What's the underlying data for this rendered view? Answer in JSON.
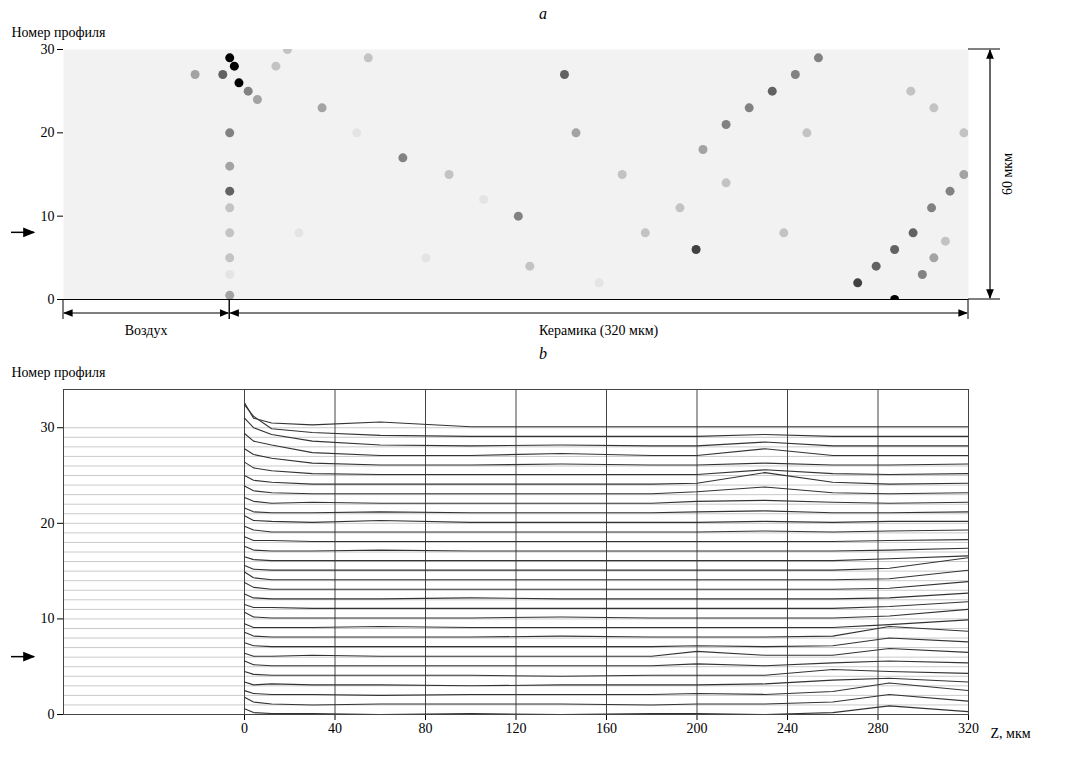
{
  "chart_data": [
    {
      "type": "heatmap",
      "title": "a",
      "y_label": "Номер профиля",
      "xlim": [
        -72,
        320
      ],
      "ylim": [
        0,
        30
      ],
      "yticks": [
        0,
        10,
        20,
        30
      ],
      "tick_labels": "y",
      "marked_profile": 8,
      "regions": [
        {
          "label": "Воздух",
          "from": -72,
          "to": 0
        },
        {
          "label": "Керамика (320 мкм)",
          "from": 0,
          "to": 320
        }
      ],
      "scale_bar": {
        "label": "60 мкм",
        "from": 0,
        "to": 30
      },
      "spots": [
        [
          0,
          29,
          1
        ],
        [
          2,
          28,
          1
        ],
        [
          4,
          26,
          1
        ],
        [
          -3,
          27,
          0.7
        ],
        [
          8,
          25,
          0.6
        ],
        [
          12,
          24,
          0.5
        ],
        [
          0,
          20,
          0.6
        ],
        [
          0,
          16,
          0.5
        ],
        [
          0,
          13,
          0.7
        ],
        [
          0,
          11,
          0.4
        ],
        [
          0,
          8,
          0.4
        ],
        [
          0,
          5,
          0.4
        ],
        [
          0,
          3,
          0.3
        ],
        [
          0,
          0.5,
          0.5
        ],
        [
          -15,
          27,
          0.5
        ],
        [
          20,
          28,
          0.4
        ],
        [
          25,
          30,
          0.4
        ],
        [
          60,
          29,
          0.4
        ],
        [
          40,
          23,
          0.5
        ],
        [
          55,
          20,
          0.3
        ],
        [
          75,
          17,
          0.6
        ],
        [
          95,
          15,
          0.4
        ],
        [
          110,
          12,
          0.3
        ],
        [
          125,
          10,
          0.6
        ],
        [
          145,
          27,
          0.7
        ],
        [
          150,
          20,
          0.5
        ],
        [
          130,
          4,
          0.4
        ],
        [
          170,
          15,
          0.4
        ],
        [
          180,
          8,
          0.4
        ],
        [
          195,
          11,
          0.4
        ],
        [
          202,
          6,
          0.8
        ],
        [
          215,
          14,
          0.4
        ],
        [
          30,
          8,
          0.3
        ],
        [
          85,
          5,
          0.3
        ],
        [
          160,
          2,
          0.3
        ],
        [
          240,
          8,
          0.4
        ],
        [
          250,
          20,
          0.4
        ],
        [
          205,
          18,
          0.5
        ],
        [
          215,
          21,
          0.6
        ],
        [
          225,
          23,
          0.6
        ],
        [
          235,
          25,
          0.7
        ],
        [
          245,
          27,
          0.6
        ],
        [
          255,
          29,
          0.6
        ],
        [
          272,
          2,
          0.8
        ],
        [
          280,
          4,
          0.7
        ],
        [
          288,
          6,
          0.7
        ],
        [
          296,
          8,
          0.7
        ],
        [
          304,
          11,
          0.6
        ],
        [
          312,
          13,
          0.6
        ],
        [
          318,
          15,
          0.5
        ],
        [
          288,
          0,
          1
        ],
        [
          300,
          3,
          0.6
        ],
        [
          305,
          5,
          0.5
        ],
        [
          310,
          7,
          0.4
        ],
        [
          318,
          20,
          0.4
        ],
        [
          305,
          23,
          0.4
        ],
        [
          295,
          25,
          0.4
        ]
      ]
    },
    {
      "type": "line",
      "title": "b",
      "y_label": "Номер профиля",
      "x_label": "Z, мкм",
      "xlim": [
        -80,
        320
      ],
      "xticks": [
        0,
        40,
        80,
        120,
        160,
        200,
        240,
        280,
        320
      ],
      "ylim": [
        0,
        34
      ],
      "yticks": [
        0,
        10,
        20,
        30
      ],
      "grid": true,
      "color": "#333333",
      "marked_profile": 6,
      "x": [
        0,
        4,
        12,
        30,
        60,
        100,
        140,
        180,
        200,
        230,
        260,
        285,
        320
      ],
      "series": [
        {
          "profile": 0,
          "values": [
            0.6,
            0.2,
            0.1,
            0.1,
            0,
            0.1,
            0,
            0.1,
            0.1,
            0,
            0.2,
            0.9,
            0.3
          ]
        },
        {
          "profile": 1,
          "values": [
            0.8,
            0.3,
            0.1,
            0,
            0.1,
            0.1,
            0.1,
            0,
            0.1,
            0.1,
            0.3,
            1.1,
            0.4
          ]
        },
        {
          "profile": 2,
          "values": [
            0.5,
            0.2,
            0.1,
            0.1,
            0,
            0.1,
            0.1,
            0.1,
            0.2,
            0.1,
            0.4,
            1.3,
            0.5
          ]
        },
        {
          "profile": 3,
          "values": [
            0.4,
            0.1,
            0.2,
            0.1,
            0.1,
            0,
            0.1,
            0.1,
            0.1,
            0.2,
            0.6,
            0.8,
            0.4
          ]
        },
        {
          "profile": 4,
          "values": [
            0.5,
            0.2,
            0.1,
            0.1,
            0.1,
            0.1,
            0,
            0.1,
            0.1,
            0.1,
            0.7,
            0.5,
            0.3
          ]
        },
        {
          "profile": 5,
          "values": [
            0.6,
            0.2,
            0.1,
            0.1,
            0.1,
            0.1,
            0.1,
            0.1,
            0.3,
            0.1,
            0.4,
            0.6,
            0.4
          ]
        },
        {
          "profile": 6,
          "values": [
            0.4,
            0.1,
            0.1,
            0.2,
            0.1,
            0.1,
            0.1,
            0.1,
            0.6,
            0.2,
            0.2,
            0.9,
            0.5
          ]
        },
        {
          "profile": 7,
          "values": [
            0.5,
            0.2,
            0.1,
            0.1,
            0.1,
            0.1,
            0.1,
            0.1,
            0.2,
            0.1,
            0.2,
            1.0,
            0.6
          ]
        },
        {
          "profile": 8,
          "values": [
            0.6,
            0.2,
            0.1,
            0.1,
            0.1,
            0.1,
            0.2,
            0.1,
            0.1,
            0.1,
            0.2,
            1.2,
            0.7
          ]
        },
        {
          "profile": 9,
          "values": [
            0.5,
            0.1,
            0.1,
            0.1,
            0.2,
            0.1,
            0.1,
            0.1,
            0.1,
            0.1,
            0.1,
            0.4,
            0.9
          ]
        },
        {
          "profile": 10,
          "values": [
            0.7,
            0.2,
            0.1,
            0.1,
            0.1,
            0.1,
            0.2,
            0.1,
            0.1,
            0.1,
            0.1,
            0.3,
            1.0
          ]
        },
        {
          "profile": 11,
          "values": [
            0.5,
            0.2,
            0.2,
            0.1,
            0.1,
            0.1,
            0.1,
            0.1,
            0.1,
            0.1,
            0.1,
            0.3,
            0.8
          ]
        },
        {
          "profile": 12,
          "values": [
            0.6,
            0.2,
            0.1,
            0.1,
            0.1,
            0.2,
            0.1,
            0.1,
            0.1,
            0.1,
            0.1,
            0.2,
            0.7
          ]
        },
        {
          "profile": 13,
          "values": [
            0.8,
            0.3,
            0.1,
            0.1,
            0.1,
            0.1,
            0.1,
            0.1,
            0.1,
            0.1,
            0.1,
            0.2,
            0.9
          ]
        },
        {
          "profile": 14,
          "values": [
            0.9,
            0.3,
            0.1,
            0.1,
            0.1,
            0.1,
            0.1,
            0.1,
            0.1,
            0.1,
            0.1,
            0.2,
            1.1
          ]
        },
        {
          "profile": 15,
          "values": [
            0.6,
            0.2,
            0.1,
            0.1,
            0.1,
            0.1,
            0.1,
            0.1,
            0.1,
            0.1,
            0.1,
            0.3,
            1.4
          ]
        },
        {
          "profile": 16,
          "values": [
            0.5,
            0.2,
            0.1,
            0.1,
            0.1,
            0.1,
            0.1,
            0.1,
            0.1,
            0.1,
            0.1,
            0.3,
            0.6
          ]
        },
        {
          "profile": 17,
          "values": [
            0.6,
            0.2,
            0.1,
            0.1,
            0.2,
            0.1,
            0.1,
            0.1,
            0.1,
            0.1,
            0.1,
            0.2,
            0.4
          ]
        },
        {
          "profile": 18,
          "values": [
            0.6,
            0.2,
            0.2,
            0.1,
            0.1,
            0.1,
            0.1,
            0.1,
            0.1,
            0.1,
            0.1,
            0.2,
            0.3
          ]
        },
        {
          "profile": 19,
          "values": [
            0.7,
            0.3,
            0.1,
            0.1,
            0.1,
            0.1,
            0.1,
            0.1,
            0.1,
            0.2,
            0.1,
            0.2,
            0.3
          ]
        },
        {
          "profile": 20,
          "values": [
            0.8,
            0.3,
            0.2,
            0.1,
            0.3,
            0.1,
            0.1,
            0.1,
            0.1,
            0.2,
            0.1,
            0.2,
            0.2
          ]
        },
        {
          "profile": 21,
          "values": [
            0.6,
            0.2,
            0.1,
            0.1,
            0.2,
            0.1,
            0.1,
            0.1,
            0.2,
            0.3,
            0.1,
            0.1,
            0.2
          ]
        },
        {
          "profile": 22,
          "values": [
            0.7,
            0.3,
            0.1,
            0.2,
            0.1,
            0.1,
            0.1,
            0.1,
            0.3,
            0.4,
            0.2,
            0.1,
            0.2
          ]
        },
        {
          "profile": 23,
          "values": [
            0.9,
            0.4,
            0.2,
            0.1,
            0.1,
            0.1,
            0.1,
            0.1,
            0.3,
            0.8,
            0.2,
            0.1,
            0.2
          ]
        },
        {
          "profile": 24,
          "values": [
            1.0,
            0.5,
            0.3,
            0.1,
            0.1,
            0.1,
            0.1,
            0.1,
            0.2,
            1.3,
            0.3,
            0.1,
            0.2
          ]
        },
        {
          "profile": 25,
          "values": [
            1.4,
            0.8,
            0.5,
            0.2,
            0.1,
            0.1,
            0.1,
            0.1,
            0.1,
            0.6,
            0.2,
            0.1,
            0.2
          ]
        },
        {
          "profile": 26,
          "values": [
            1.8,
            1.2,
            0.8,
            0.3,
            0.1,
            0.1,
            0.2,
            0.1,
            0.1,
            0.3,
            0.1,
            0.1,
            0.2
          ]
        },
        {
          "profile": 27,
          "values": [
            2.4,
            1.6,
            1.2,
            0.4,
            0.1,
            0.1,
            0.3,
            0.1,
            0.1,
            0.8,
            0.1,
            0.1,
            0.1
          ]
        },
        {
          "profile": 28,
          "values": [
            3.0,
            2.0,
            1.3,
            0.6,
            0.2,
            0.1,
            0.2,
            0.1,
            0.1,
            0.5,
            0.1,
            0.1,
            0.1
          ]
        },
        {
          "profile": 29,
          "values": [
            3.4,
            2.2,
            0.9,
            0.5,
            0.2,
            0.1,
            0.1,
            0.1,
            0.1,
            0.3,
            0.1,
            0.1,
            0.1
          ]
        },
        {
          "profile": 30,
          "values": [
            2.6,
            1.0,
            0.5,
            0.3,
            0.6,
            0.1,
            0.1,
            0.1,
            0.1,
            0.1,
            0.1,
            0.1,
            0.1
          ]
        }
      ]
    }
  ]
}
